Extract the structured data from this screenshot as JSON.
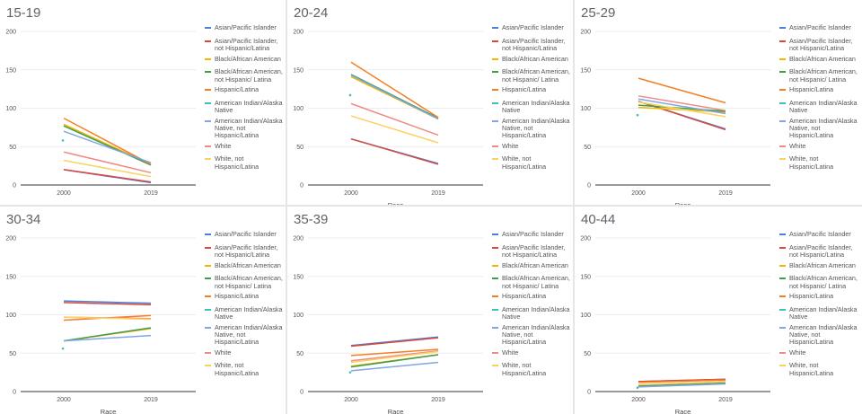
{
  "colors": {
    "Asian/Pacific Islander": "#4a7fdb",
    "Asian/Pacific Islander, not Hispanic/Latina": "#d94a3d",
    "Black/African American": "#f4b400",
    "Black/African American, not Hispanic/ Latina": "#3f9e4d",
    "Hispanic/Latina": "#f47f23",
    "American Indian/Alaska Native": "#3fc0b8",
    "American Indian/Alaska Native, not Hispanic/Latina": "#7fa6e5",
    "White": "#ef8a86",
    "White, not Hispanic/Latina": "#fbd260"
  },
  "legend_order": [
    "Asian/Pacific Islander",
    "Asian/Pacific Islander, not Hispanic/Latina",
    "Black/African American",
    "Black/African American, not Hispanic/ Latina",
    "Hispanic/Latina",
    "American Indian/Alaska Native",
    "American Indian/Alaska Native, not Hispanic/Latina",
    "White",
    "White, not Hispanic/Latina"
  ],
  "chart_data": [
    {
      "type": "line",
      "title": "15-19",
      "xlabel": "",
      "ylim": [
        0,
        200
      ],
      "yticks": [
        0,
        50,
        100,
        150,
        200
      ],
      "categories": [
        "2000",
        "2019"
      ],
      "legend_position": "right",
      "series": [
        {
          "name": "Asian/Pacific Islander",
          "values": [
            20,
            3
          ]
        },
        {
          "name": "Asian/Pacific Islander, not Hispanic/Latina",
          "values": [
            20,
            4
          ]
        },
        {
          "name": "Black/African American",
          "values": [
            79,
            27
          ]
        },
        {
          "name": "Black/African American, not Hispanic/ Latina",
          "values": [
            77,
            26
          ]
        },
        {
          "name": "Hispanic/Latina",
          "values": [
            87,
            27
          ]
        },
        {
          "name": "American Indian/Alaska Native",
          "values": [
            58,
            null
          ]
        },
        {
          "name": "American Indian/Alaska Native, not Hispanic/Latina",
          "values": [
            70,
            29
          ]
        },
        {
          "name": "White",
          "values": [
            43,
            16
          ]
        },
        {
          "name": "White, not Hispanic/Latina",
          "values": [
            32,
            11
          ]
        }
      ]
    },
    {
      "type": "line",
      "title": "20-24",
      "xlabel": "Race",
      "ylim": [
        0,
        200
      ],
      "yticks": [
        0,
        50,
        100,
        150,
        200
      ],
      "categories": [
        "2000",
        "2019"
      ],
      "legend_position": "right",
      "series": [
        {
          "name": "Asian/Pacific Islander",
          "values": [
            60,
            28
          ]
        },
        {
          "name": "Asian/Pacific Islander, not Hispanic/Latina",
          "values": [
            60,
            27
          ]
        },
        {
          "name": "Black/African American",
          "values": [
            141,
            86
          ]
        },
        {
          "name": "Black/African American, not Hispanic/ Latina",
          "values": [
            144,
            87
          ]
        },
        {
          "name": "Hispanic/Latina",
          "values": [
            160,
            88
          ]
        },
        {
          "name": "American Indian/Alaska Native",
          "values": [
            117,
            null
          ]
        },
        {
          "name": "American Indian/Alaska Native, not Hispanic/Latina",
          "values": [
            143,
            86
          ]
        },
        {
          "name": "White",
          "values": [
            106,
            65
          ]
        },
        {
          "name": "White, not Hispanic/Latina",
          "values": [
            90,
            55
          ]
        }
      ]
    },
    {
      "type": "line",
      "title": "25-29",
      "xlabel": "Race",
      "ylim": [
        0,
        200
      ],
      "yticks": [
        0,
        50,
        100,
        150,
        200
      ],
      "categories": [
        "2000",
        "2019"
      ],
      "legend_position": "right",
      "series": [
        {
          "name": "Asian/Pacific Islander",
          "values": [
            109,
            73
          ]
        },
        {
          "name": "Asian/Pacific Islander, not Hispanic/Latina",
          "values": [
            109,
            72
          ]
        },
        {
          "name": "Black/African American",
          "values": [
            101,
            95
          ]
        },
        {
          "name": "Black/African American, not Hispanic/ Latina",
          "values": [
            104,
            96
          ]
        },
        {
          "name": "Hispanic/Latina",
          "values": [
            139,
            107
          ]
        },
        {
          "name": "American Indian/Alaska Native",
          "values": [
            91,
            null
          ]
        },
        {
          "name": "American Indian/Alaska Native, not Hispanic/Latina",
          "values": [
            112,
            93
          ]
        },
        {
          "name": "White",
          "values": [
            116,
            97
          ]
        },
        {
          "name": "White, not Hispanic/Latina",
          "values": [
            108,
            89
          ]
        }
      ]
    },
    {
      "type": "line",
      "title": "30-34",
      "xlabel": "Race",
      "ylim": [
        0,
        200
      ],
      "yticks": [
        0,
        50,
        100,
        150,
        200
      ],
      "categories": [
        "2000",
        "2019"
      ],
      "legend_position": "right",
      "series": [
        {
          "name": "Asian/Pacific Islander",
          "values": [
            118,
            115
          ]
        },
        {
          "name": "Asian/Pacific Islander, not Hispanic/Latina",
          "values": [
            116,
            113
          ]
        },
        {
          "name": "Black/African American",
          "values": [
            66,
            82
          ]
        },
        {
          "name": "Black/African American, not Hispanic/ Latina",
          "values": [
            66,
            83
          ]
        },
        {
          "name": "Hispanic/Latina",
          "values": [
            93,
            99
          ]
        },
        {
          "name": "American Indian/Alaska Native",
          "values": [
            56,
            null
          ]
        },
        {
          "name": "American Indian/Alaska Native, not Hispanic/Latina",
          "values": [
            66,
            73
          ]
        },
        {
          "name": "White",
          "values": [
            97,
            95
          ]
        },
        {
          "name": "White, not Hispanic/Latina",
          "values": [
            97,
            94
          ]
        }
      ]
    },
    {
      "type": "line",
      "title": "35-39",
      "xlabel": "Race",
      "ylim": [
        0,
        200
      ],
      "yticks": [
        0,
        50,
        100,
        150,
        200
      ],
      "categories": [
        "2000",
        "2019"
      ],
      "legend_position": "right",
      "series": [
        {
          "name": "Asian/Pacific Islander",
          "values": [
            60,
            71
          ]
        },
        {
          "name": "Asian/Pacific Islander, not Hispanic/Latina",
          "values": [
            59,
            70
          ]
        },
        {
          "name": "Black/African American",
          "values": [
            33,
            48
          ]
        },
        {
          "name": "Black/African American, not Hispanic/ Latina",
          "values": [
            32,
            48
          ]
        },
        {
          "name": "Hispanic/Latina",
          "values": [
            47,
            55
          ]
        },
        {
          "name": "American Indian/Alaska Native",
          "values": [
            25,
            null
          ]
        },
        {
          "name": "American Indian/Alaska Native, not Hispanic/Latina",
          "values": [
            27,
            38
          ]
        },
        {
          "name": "White",
          "values": [
            40,
            53
          ]
        },
        {
          "name": "White, not Hispanic/Latina",
          "values": [
            38,
            52
          ]
        }
      ]
    },
    {
      "type": "line",
      "title": "40-44",
      "xlabel": "Race",
      "ylim": [
        0,
        200
      ],
      "yticks": [
        0,
        50,
        100,
        150,
        200
      ],
      "categories": [
        "2000",
        "2019"
      ],
      "legend_position": "right",
      "series": [
        {
          "name": "Asian/Pacific Islander",
          "values": [
            13,
            16
          ]
        },
        {
          "name": "Asian/Pacific Islander, not Hispanic/Latina",
          "values": [
            13,
            16
          ]
        },
        {
          "name": "Black/African American",
          "values": [
            7,
            11
          ]
        },
        {
          "name": "Black/African American, not Hispanic/ Latina",
          "values": [
            7,
            11
          ]
        },
        {
          "name": "Hispanic/Latina",
          "values": [
            12,
            15
          ]
        },
        {
          "name": "American Indian/Alaska Native",
          "values": [
            5,
            null
          ]
        },
        {
          "name": "American Indian/Alaska Native, not Hispanic/Latina",
          "values": [
            6,
            10
          ]
        },
        {
          "name": "White",
          "values": [
            9,
            13
          ]
        },
        {
          "name": "White, not Hispanic/Latina",
          "values": [
            9,
            13
          ]
        }
      ]
    }
  ]
}
